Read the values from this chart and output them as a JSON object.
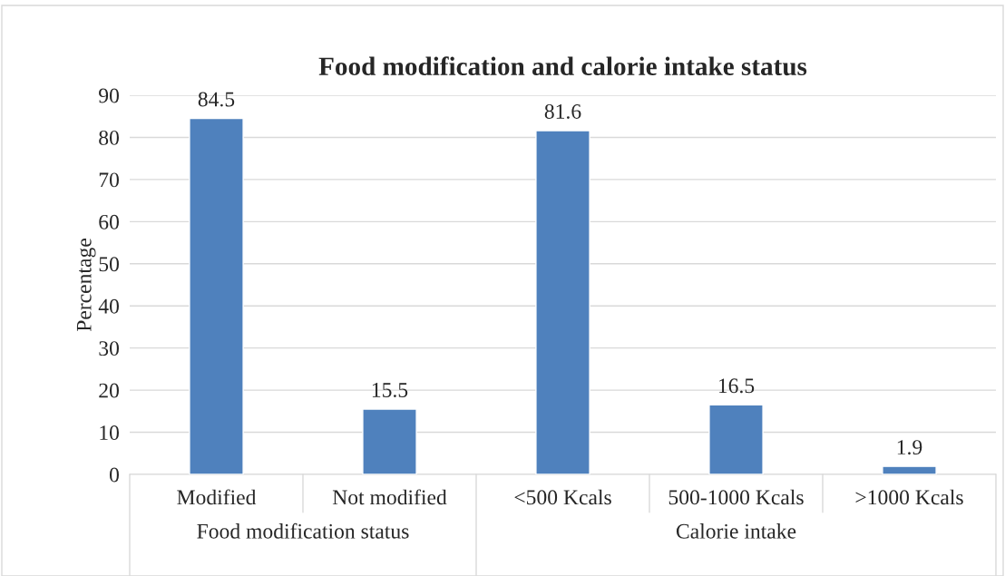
{
  "chart_data": {
    "type": "bar",
    "title": "Food modification and calorie intake status",
    "ylabel": "Percentage",
    "categories": [
      "Modified",
      "Not modified",
      "<500 Kcals",
      "500-1000 Kcals",
      ">1000 Kcals"
    ],
    "values": [
      84.5,
      15.5,
      81.6,
      16.5,
      1.9
    ],
    "color": "#4f81bd",
    "ylim": [
      0,
      90
    ],
    "yticks": [
      0,
      10,
      20,
      30,
      40,
      50,
      60,
      70,
      80,
      90
    ],
    "grid": "y",
    "data_labels": true,
    "legend": false,
    "annotations": [
      "Food modification status",
      "Calorie intake"
    ]
  }
}
